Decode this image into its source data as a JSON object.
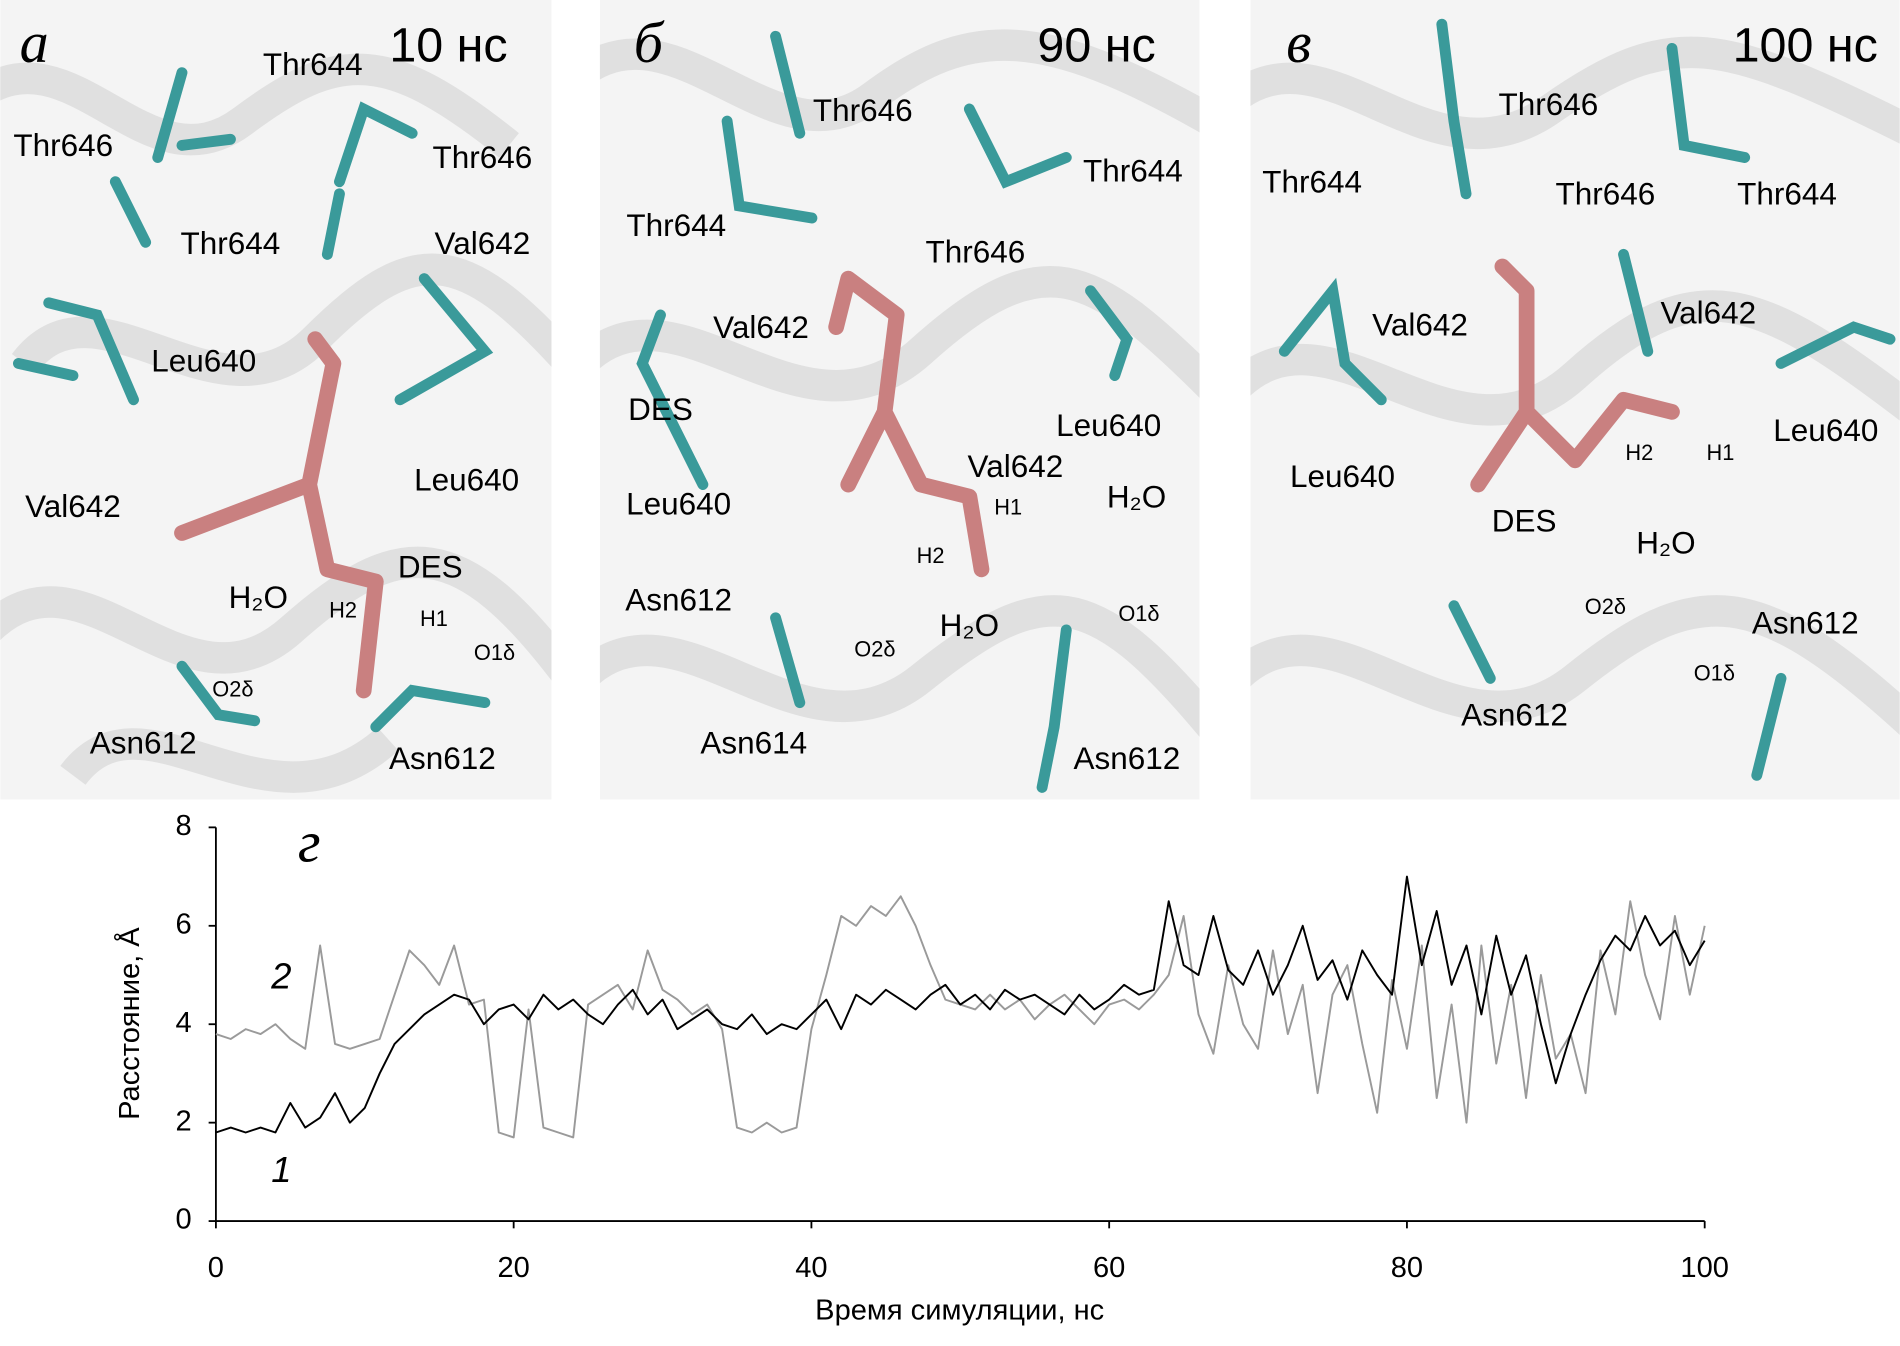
{
  "panels": [
    {
      "letter": "а",
      "time": "10 нс",
      "labels": [
        "Thr644",
        "Thr646",
        "Thr646",
        "Thr644",
        "Val642",
        "Leu640",
        "Val642",
        "Leu640",
        "DES",
        "H₂O",
        "H2",
        "H1",
        "O1δ",
        "O2δ",
        "Asn612",
        "Asn612"
      ]
    },
    {
      "letter": "б",
      "time": "90 нс",
      "labels": [
        "Thr646",
        "Thr644",
        "Thr644",
        "Thr646",
        "Val642",
        "DES",
        "Val642",
        "Leu640",
        "Leu640",
        "H1",
        "H₂O",
        "H2",
        "Asn612",
        "H₂O",
        "O2δ",
        "O1δ",
        "Asn614",
        "Asn612"
      ]
    },
    {
      "letter": "в",
      "time": "100 нс",
      "labels": [
        "Thr646",
        "Thr644",
        "Thr646",
        "Thr644",
        "Val642",
        "Val642",
        "Leu640",
        "Leu640",
        "H2",
        "H1",
        "DES",
        "H₂O",
        "O2δ",
        "Asn612",
        "O1δ",
        "Asn612"
      ]
    }
  ],
  "chart_data": {
    "type": "line",
    "panel_letter": "г",
    "x_label": "Время симуляции, нс",
    "y_label": "Расстояние, Å",
    "x": [
      0,
      1,
      2,
      3,
      4,
      5,
      6,
      7,
      8,
      9,
      10,
      11,
      12,
      13,
      14,
      15,
      16,
      17,
      18,
      19,
      20,
      21,
      22,
      23,
      24,
      25,
      26,
      27,
      28,
      29,
      30,
      31,
      32,
      33,
      34,
      35,
      36,
      37,
      38,
      39,
      40,
      41,
      42,
      43,
      44,
      45,
      46,
      47,
      48,
      49,
      50,
      51,
      52,
      53,
      54,
      55,
      56,
      57,
      58,
      59,
      60,
      61,
      62,
      63,
      64,
      65,
      66,
      67,
      68,
      69,
      70,
      71,
      72,
      73,
      74,
      75,
      76,
      77,
      78,
      79,
      80,
      81,
      82,
      83,
      84,
      85,
      86,
      87,
      88,
      89,
      90,
      91,
      92,
      93,
      94,
      95,
      96,
      97,
      98,
      99,
      100
    ],
    "series": [
      {
        "name": "1",
        "color": "#000000",
        "values": [
          1.8,
          1.9,
          1.8,
          1.9,
          1.8,
          2.4,
          1.9,
          2.1,
          2.6,
          2.0,
          2.3,
          3.0,
          3.6,
          3.9,
          4.2,
          4.4,
          4.6,
          4.5,
          4.0,
          4.3,
          4.4,
          4.1,
          4.6,
          4.3,
          4.5,
          4.2,
          4.0,
          4.4,
          4.7,
          4.2,
          4.5,
          3.9,
          4.1,
          4.3,
          4.0,
          3.9,
          4.2,
          3.8,
          4.0,
          3.9,
          4.2,
          4.5,
          3.9,
          4.6,
          4.4,
          4.7,
          4.5,
          4.3,
          4.6,
          4.8,
          4.4,
          4.6,
          4.3,
          4.7,
          4.5,
          4.6,
          4.4,
          4.2,
          4.6,
          4.3,
          4.5,
          4.8,
          4.6,
          4.7,
          6.5,
          5.2,
          5.0,
          6.2,
          5.1,
          4.8,
          5.5,
          4.6,
          5.2,
          6.0,
          4.9,
          5.3,
          4.5,
          5.5,
          5.0,
          4.6,
          7.0,
          5.2,
          6.3,
          4.8,
          5.6,
          4.2,
          5.8,
          4.6,
          5.4,
          4.0,
          2.8,
          3.8,
          4.6,
          5.3,
          5.8,
          5.5,
          6.2,
          5.6,
          5.9,
          5.2,
          5.7
        ]
      },
      {
        "name": "2",
        "color": "#9a9a9a",
        "values": [
          3.8,
          3.7,
          3.9,
          3.8,
          4.0,
          3.7,
          3.5,
          5.6,
          3.6,
          3.5,
          3.6,
          3.7,
          4.6,
          5.5,
          5.2,
          4.8,
          5.6,
          4.4,
          4.5,
          1.8,
          1.7,
          4.3,
          1.9,
          1.8,
          1.7,
          4.4,
          4.6,
          4.8,
          4.3,
          5.5,
          4.7,
          4.5,
          4.2,
          4.4,
          3.9,
          1.9,
          1.8,
          2.0,
          1.8,
          1.9,
          3.9,
          5.0,
          6.2,
          6.0,
          6.4,
          6.2,
          6.6,
          6.0,
          5.2,
          4.5,
          4.4,
          4.3,
          4.6,
          4.3,
          4.5,
          4.1,
          4.4,
          4.6,
          4.3,
          4.0,
          4.4,
          4.5,
          4.3,
          4.6,
          5.0,
          6.2,
          4.2,
          3.4,
          5.2,
          4.0,
          3.5,
          5.5,
          3.8,
          4.8,
          2.6,
          4.6,
          5.2,
          3.6,
          2.2,
          4.9,
          3.5,
          5.6,
          2.5,
          4.4,
          2.0,
          5.6,
          3.2,
          4.8,
          2.5,
          5.0,
          3.3,
          3.8,
          2.6,
          5.5,
          4.2,
          6.5,
          5.0,
          4.1,
          6.2,
          4.6,
          6.0
        ]
      }
    ],
    "xlim": [
      0,
      100
    ],
    "xticks": [
      0,
      20,
      40,
      60,
      80,
      100
    ],
    "ylim": [
      0,
      8
    ],
    "yticks": [
      0,
      2,
      4,
      6,
      8
    ]
  }
}
